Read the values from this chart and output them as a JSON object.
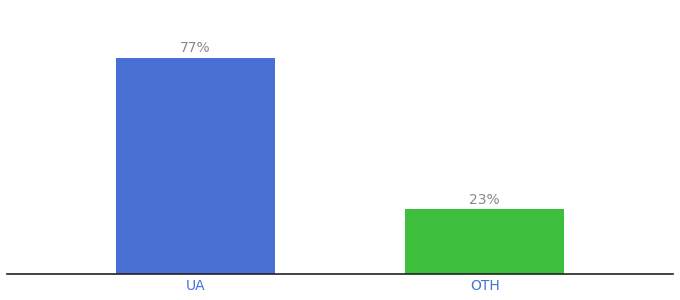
{
  "categories": [
    "UA",
    "OTH"
  ],
  "values": [
    77,
    23
  ],
  "bar_colors": [
    "#4a6fd4",
    "#3dbf3d"
  ],
  "label_texts": [
    "77%",
    "23%"
  ],
  "label_color": "#888888",
  "ylim": [
    0,
    95
  ],
  "tick_color": "#4a6fd4",
  "background_color": "#ffffff",
  "bar_width": 0.55,
  "label_fontsize": 10,
  "tick_fontsize": 10
}
